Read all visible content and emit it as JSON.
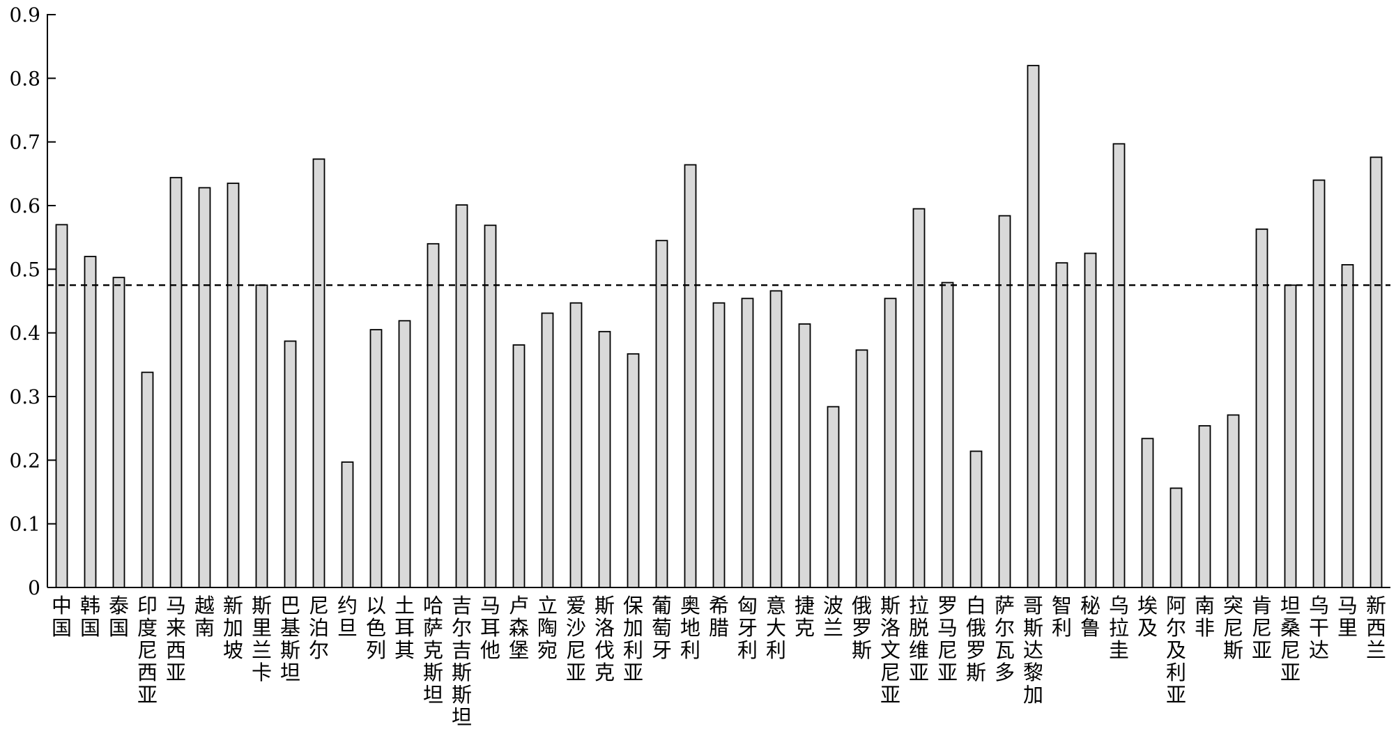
{
  "chart_data": {
    "type": "bar",
    "title": "",
    "xlabel": "",
    "ylabel": "",
    "ylim": [
      0,
      0.9
    ],
    "y_ticks": [
      "0",
      "0.1",
      "0.2",
      "0.3",
      "0.4",
      "0.5",
      "0.6",
      "0.7",
      "0.8",
      "0.9"
    ],
    "grid": false,
    "reference_line": 0.475,
    "bar_color": "#d9d9d9",
    "categories": [
      "中国",
      "韩国",
      "泰国",
      "印度尼西亚",
      "马来西亚",
      "越南",
      "新加坡",
      "斯里兰卡",
      "巴基斯坦",
      "尼泊尔",
      "约旦",
      "以色列",
      "土耳其",
      "哈萨克斯坦",
      "吉尔吉斯斯坦",
      "马耳他",
      "卢森堡",
      "立陶宛",
      "爱沙尼亚",
      "斯洛伐克",
      "保加利亚",
      "葡萄牙",
      "奥地利",
      "希腊",
      "匈牙利",
      "意大利",
      "捷克",
      "波兰",
      "俄罗斯",
      "斯洛文尼亚",
      "拉脱维亚",
      "罗马尼亚",
      "白俄罗斯",
      "萨尔瓦多",
      "哥斯达黎加",
      "智利",
      "秘鲁",
      "乌拉圭",
      "埃及",
      "阿尔及利亚",
      "南非",
      "突尼斯",
      "肯尼亚",
      "坦桑尼亚",
      "乌干达",
      "马里",
      "新西兰"
    ],
    "values": [
      0.57,
      0.52,
      0.487,
      0.338,
      0.644,
      0.628,
      0.635,
      0.475,
      0.387,
      0.673,
      0.197,
      0.405,
      0.419,
      0.54,
      0.601,
      0.569,
      0.381,
      0.431,
      0.447,
      0.402,
      0.367,
      0.545,
      0.664,
      0.447,
      0.454,
      0.466,
      0.414,
      0.284,
      0.373,
      0.454,
      0.595,
      0.479,
      0.214,
      0.584,
      0.82,
      0.51,
      0.525,
      0.697,
      0.234,
      0.156,
      0.254,
      0.271,
      0.563,
      0.475,
      0.64,
      0.507,
      0.676
    ]
  }
}
